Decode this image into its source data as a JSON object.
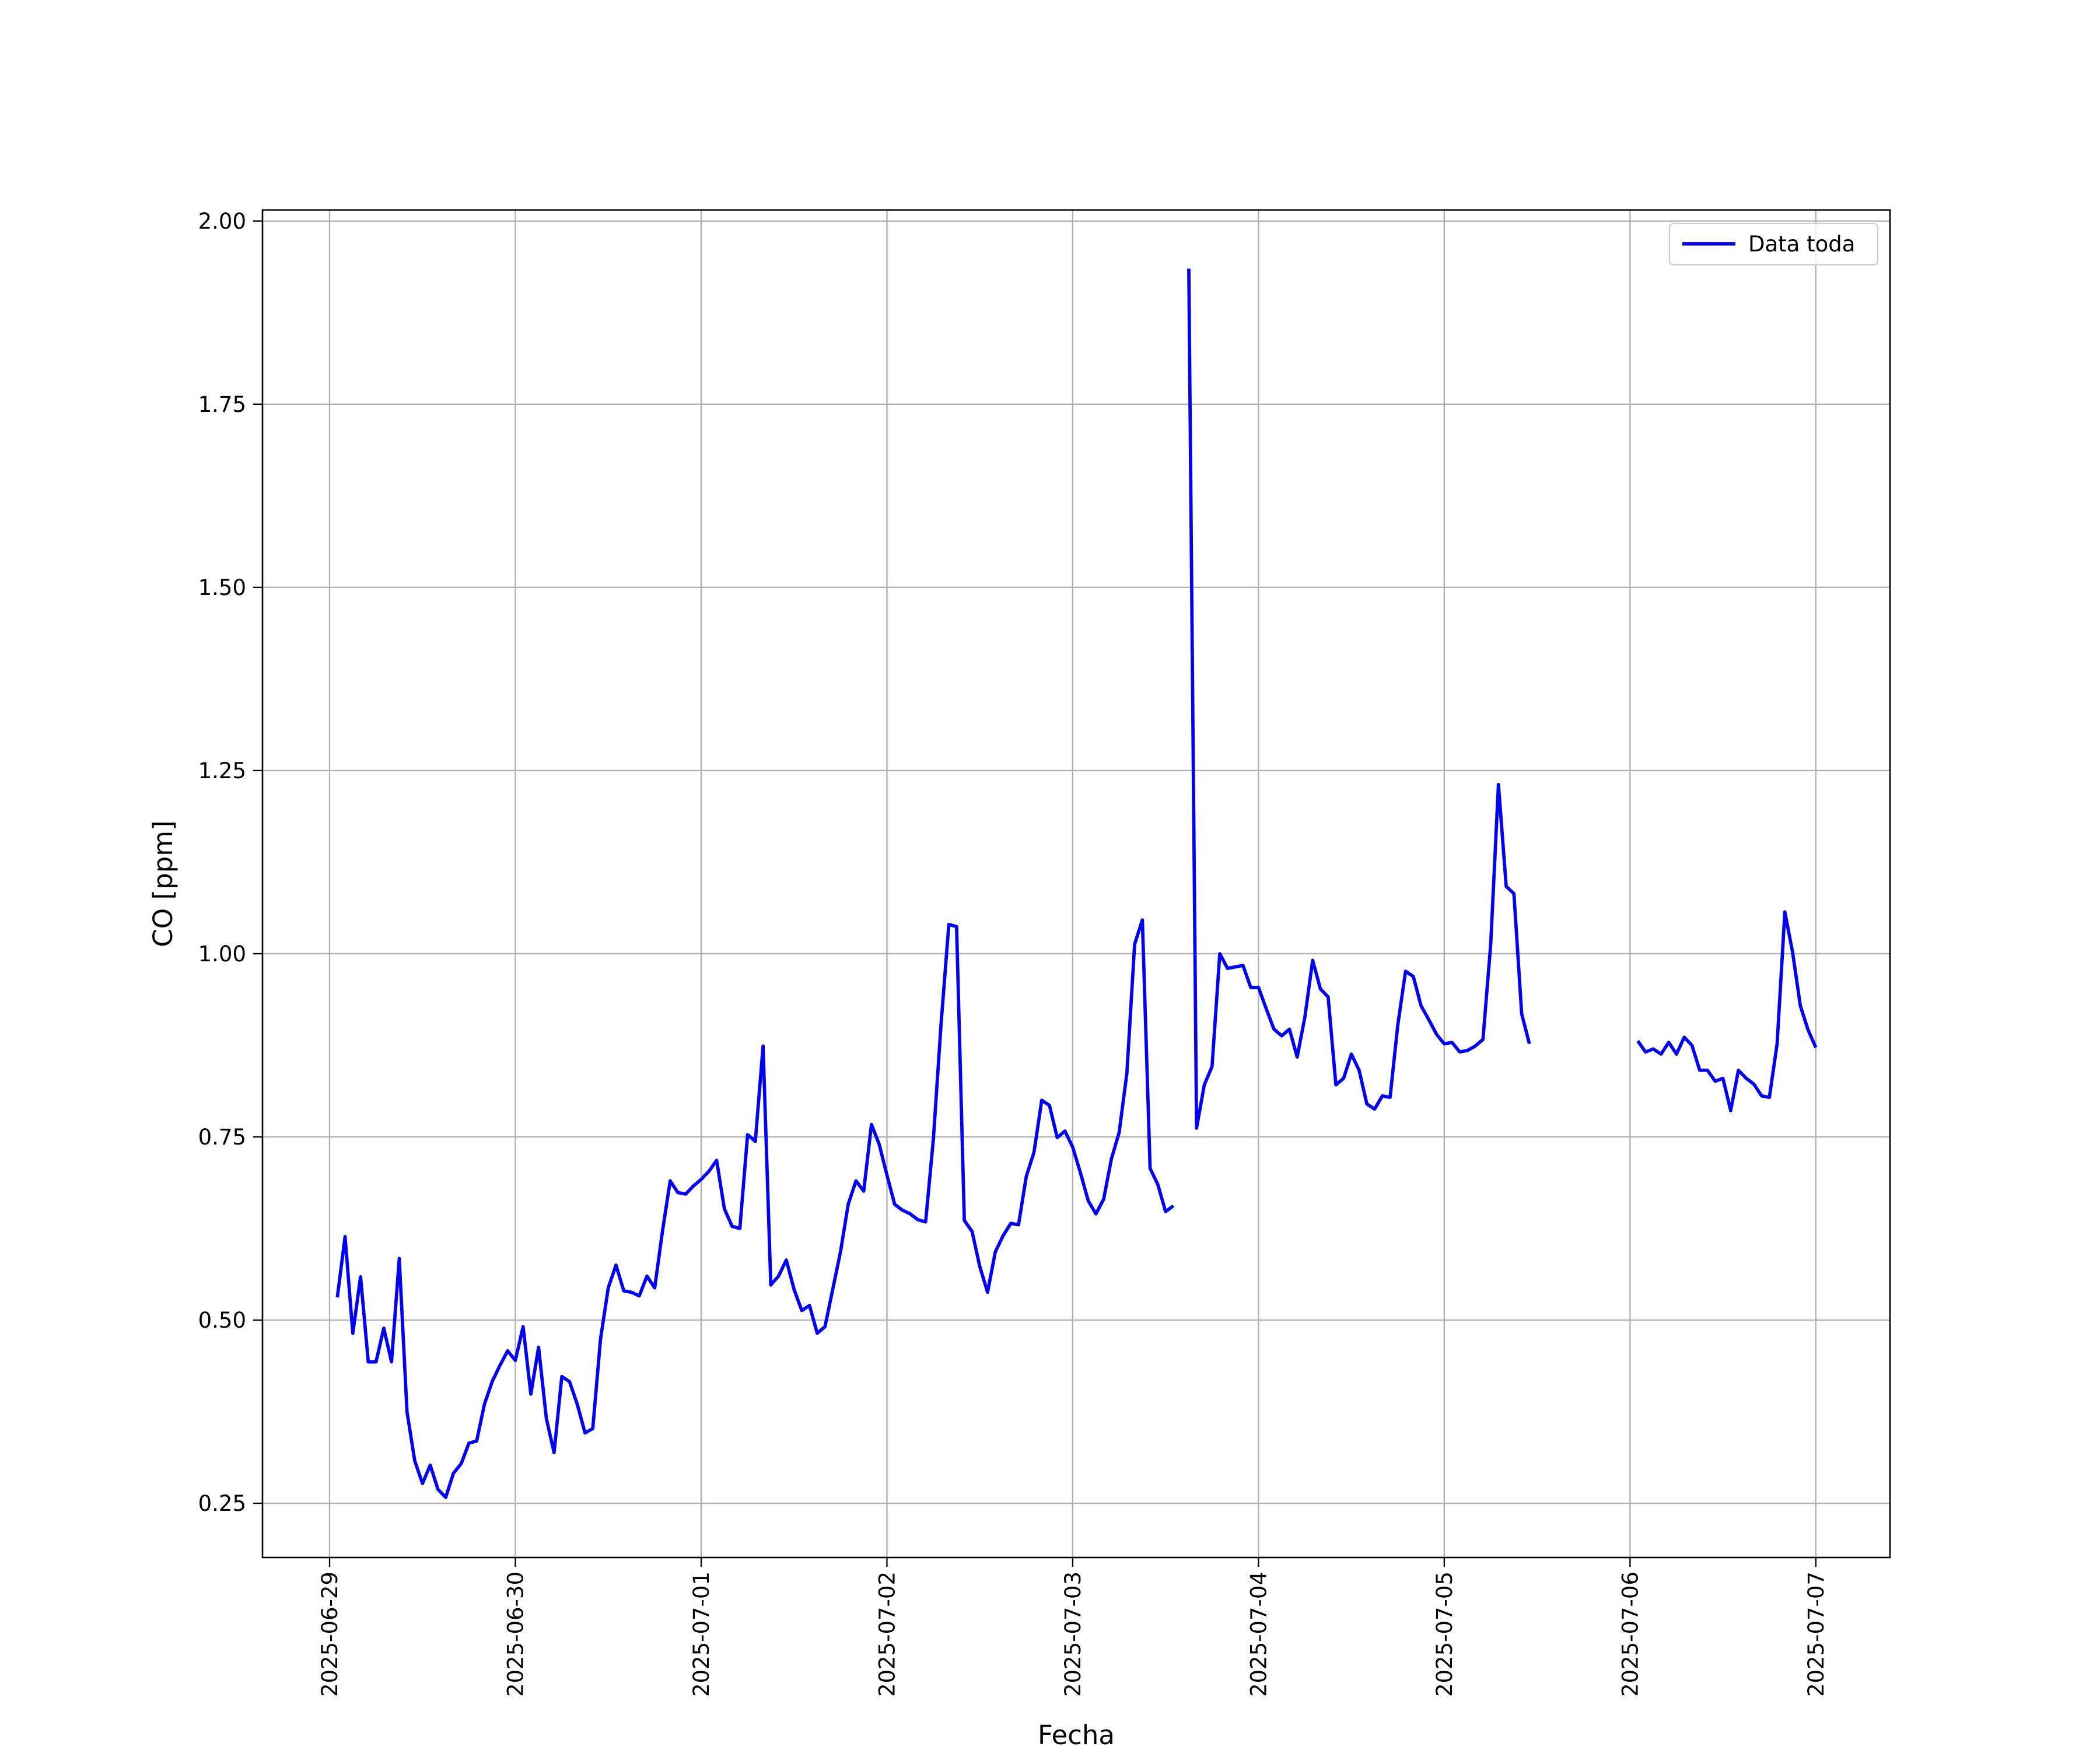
{
  "chart_data": {
    "type": "line",
    "title": "",
    "xlabel": "Fecha",
    "ylabel": "CO [ppm]",
    "xlim": [
      "2025-06-28 15:20",
      "2025-07-07 09:35"
    ],
    "ylim": [
      0.176,
      2.015
    ],
    "grid": true,
    "legend_position": "top-right",
    "x_ticks": [
      "2025-06-29",
      "2025-06-30",
      "2025-07-01",
      "2025-07-02",
      "2025-07-03",
      "2025-07-04",
      "2025-07-05",
      "2025-07-06",
      "2025-07-07"
    ],
    "y_ticks": [
      "0.25",
      "0.50",
      "0.75",
      "1.00",
      "1.25",
      "1.50",
      "1.75",
      "2.00"
    ],
    "series": [
      {
        "name": "Data toda",
        "color": "#0000ff",
        "points": [
          [
            "2025-06-29 01:00",
            0.531
          ],
          [
            "2025-06-29 02:00",
            0.614
          ],
          [
            "2025-06-29 03:00",
            0.482
          ],
          [
            "2025-06-29 04:00",
            0.559
          ],
          [
            "2025-06-29 05:00",
            0.443
          ],
          [
            "2025-06-29 06:00",
            0.443
          ],
          [
            "2025-06-29 07:00",
            0.489
          ],
          [
            "2025-06-29 08:00",
            0.443
          ],
          [
            "2025-06-29 09:00",
            0.584
          ],
          [
            "2025-06-29 10:00",
            0.375
          ],
          [
            "2025-06-29 11:00",
            0.308
          ],
          [
            "2025-06-29 12:00",
            0.277
          ],
          [
            "2025-06-29 13:00",
            0.302
          ],
          [
            "2025-06-29 14:00",
            0.269
          ],
          [
            "2025-06-29 15:00",
            0.258
          ],
          [
            "2025-06-29 16:00",
            0.291
          ],
          [
            "2025-06-29 17:00",
            0.304
          ],
          [
            "2025-06-29 18:00",
            0.332
          ],
          [
            "2025-06-29 19:00",
            0.335
          ],
          [
            "2025-06-29 20:00",
            0.385
          ],
          [
            "2025-06-29 21:00",
            0.416
          ],
          [
            "2025-06-29 22:00",
            0.438
          ],
          [
            "2025-06-29 23:00",
            0.458
          ],
          [
            "2025-06-30 00:00",
            0.445
          ],
          [
            "2025-06-30 01:00",
            0.491
          ],
          [
            "2025-06-30 02:00",
            0.399
          ],
          [
            "2025-06-30 03:00",
            0.463
          ],
          [
            "2025-06-30 04:00",
            0.366
          ],
          [
            "2025-06-30 05:00",
            0.319
          ],
          [
            "2025-06-30 06:00",
            0.423
          ],
          [
            "2025-06-30 07:00",
            0.416
          ],
          [
            "2025-06-30 08:00",
            0.385
          ],
          [
            "2025-06-30 09:00",
            0.346
          ],
          [
            "2025-06-30 10:00",
            0.352
          ],
          [
            "2025-06-30 11:00",
            0.474
          ],
          [
            "2025-06-30 12:00",
            0.544
          ],
          [
            "2025-06-30 13:00",
            0.575
          ],
          [
            "2025-06-30 14:00",
            0.54
          ],
          [
            "2025-06-30 15:00",
            0.538
          ],
          [
            "2025-06-30 16:00",
            0.533
          ],
          [
            "2025-06-30 17:00",
            0.56
          ],
          [
            "2025-06-30 18:00",
            0.544
          ],
          [
            "2025-06-30 19:00",
            0.621
          ],
          [
            "2025-06-30 20:00",
            0.69
          ],
          [
            "2025-06-30 21:00",
            0.674
          ],
          [
            "2025-06-30 22:00",
            0.672
          ],
          [
            "2025-06-30 23:00",
            0.683
          ],
          [
            "2025-07-01 00:00",
            0.692
          ],
          [
            "2025-07-01 01:00",
            0.703
          ],
          [
            "2025-07-01 02:00",
            0.718
          ],
          [
            "2025-07-01 03:00",
            0.652
          ],
          [
            "2025-07-01 04:00",
            0.628
          ],
          [
            "2025-07-01 05:00",
            0.625
          ],
          [
            "2025-07-01 06:00",
            0.753
          ],
          [
            "2025-07-01 07:00",
            0.744
          ],
          [
            "2025-07-01 08:00",
            0.874
          ],
          [
            "2025-07-01 09:00",
            0.548
          ],
          [
            "2025-07-01 10:00",
            0.56
          ],
          [
            "2025-07-01 11:00",
            0.582
          ],
          [
            "2025-07-01 12:00",
            0.542
          ],
          [
            "2025-07-01 13:00",
            0.513
          ],
          [
            "2025-07-01 14:00",
            0.52
          ],
          [
            "2025-07-01 15:00",
            0.482
          ],
          [
            "2025-07-01 16:00",
            0.491
          ],
          [
            "2025-07-01 17:00",
            0.542
          ],
          [
            "2025-07-01 18:00",
            0.593
          ],
          [
            "2025-07-01 19:00",
            0.658
          ],
          [
            "2025-07-01 20:00",
            0.69
          ],
          [
            "2025-07-01 21:00",
            0.676
          ],
          [
            "2025-07-01 22:00",
            0.767
          ],
          [
            "2025-07-01 23:00",
            0.74
          ],
          [
            "2025-07-02 00:00",
            0.698
          ],
          [
            "2025-07-02 01:00",
            0.658
          ],
          [
            "2025-07-02 02:00",
            0.65
          ],
          [
            "2025-07-02 03:00",
            0.645
          ],
          [
            "2025-07-02 04:00",
            0.637
          ],
          [
            "2025-07-02 05:00",
            0.634
          ],
          [
            "2025-07-02 06:00",
            0.747
          ],
          [
            "2025-07-02 07:00",
            0.905
          ],
          [
            "2025-07-02 08:00",
            1.04
          ],
          [
            "2025-07-02 09:00",
            1.037
          ],
          [
            "2025-07-02 10:00",
            0.636
          ],
          [
            "2025-07-02 11:00",
            0.621
          ],
          [
            "2025-07-02 12:00",
            0.573
          ],
          [
            "2025-07-02 13:00",
            0.538
          ],
          [
            "2025-07-02 14:00",
            0.593
          ],
          [
            "2025-07-02 15:00",
            0.615
          ],
          [
            "2025-07-02 16:00",
            0.632
          ],
          [
            "2025-07-02 17:00",
            0.63
          ],
          [
            "2025-07-02 18:00",
            0.696
          ],
          [
            "2025-07-02 19:00",
            0.729
          ],
          [
            "2025-07-02 20:00",
            0.8
          ],
          [
            "2025-07-02 21:00",
            0.793
          ],
          [
            "2025-07-02 22:00",
            0.749
          ],
          [
            "2025-07-02 23:00",
            0.758
          ],
          [
            "2025-07-03 00:00",
            0.736
          ],
          [
            "2025-07-03 01:00",
            0.701
          ],
          [
            "2025-07-03 02:00",
            0.663
          ],
          [
            "2025-07-03 03:00",
            0.645
          ],
          [
            "2025-07-03 04:00",
            0.665
          ],
          [
            "2025-07-03 05:00",
            0.72
          ],
          [
            "2025-07-03 06:00",
            0.756
          ],
          [
            "2025-07-03 07:00",
            0.837
          ],
          [
            "2025-07-03 08:00",
            1.013
          ],
          [
            "2025-07-03 09:00",
            1.046
          ],
          [
            "2025-07-03 10:00",
            0.707
          ],
          [
            "2025-07-03 11:00",
            0.685
          ],
          [
            "2025-07-03 12:00",
            0.648
          ],
          [
            "2025-07-03 13:00",
            0.656
          ],
          [
            "2025-07-03 15:00",
            1.935
          ],
          [
            "2025-07-03 16:00",
            0.762
          ],
          [
            "2025-07-03 17:00",
            0.821
          ],
          [
            "2025-07-03 18:00",
            0.846
          ],
          [
            "2025-07-03 19:00",
            1.0
          ],
          [
            "2025-07-03 20:00",
            0.98
          ],
          [
            "2025-07-03 21:00",
            0.982
          ],
          [
            "2025-07-03 22:00",
            0.984
          ],
          [
            "2025-07-03 23:00",
            0.954
          ],
          [
            "2025-07-04 00:00",
            0.954
          ],
          [
            "2025-07-04 01:00",
            0.925
          ],
          [
            "2025-07-04 02:00",
            0.897
          ],
          [
            "2025-07-04 03:00",
            0.888
          ],
          [
            "2025-07-04 04:00",
            0.897
          ],
          [
            "2025-07-04 05:00",
            0.859
          ],
          [
            "2025-07-04 06:00",
            0.914
          ],
          [
            "2025-07-04 07:00",
            0.991
          ],
          [
            "2025-07-04 08:00",
            0.952
          ],
          [
            "2025-07-04 09:00",
            0.941
          ],
          [
            "2025-07-04 10:00",
            0.821
          ],
          [
            "2025-07-04 11:00",
            0.83
          ],
          [
            "2025-07-04 12:00",
            0.863
          ],
          [
            "2025-07-04 13:00",
            0.841
          ],
          [
            "2025-07-04 14:00",
            0.795
          ],
          [
            "2025-07-04 15:00",
            0.788
          ],
          [
            "2025-07-04 16:00",
            0.806
          ],
          [
            "2025-07-04 17:00",
            0.804
          ],
          [
            "2025-07-04 18:00",
            0.903
          ],
          [
            "2025-07-04 19:00",
            0.976
          ],
          [
            "2025-07-04 20:00",
            0.969
          ],
          [
            "2025-07-04 21:00",
            0.929
          ],
          [
            "2025-07-04 22:00",
            0.91
          ],
          [
            "2025-07-04 23:00",
            0.89
          ],
          [
            "2025-07-05 00:00",
            0.877
          ],
          [
            "2025-07-05 01:00",
            0.879
          ],
          [
            "2025-07-05 02:00",
            0.866
          ],
          [
            "2025-07-05 03:00",
            0.868
          ],
          [
            "2025-07-05 04:00",
            0.874
          ],
          [
            "2025-07-05 05:00",
            0.883
          ],
          [
            "2025-07-05 06:00",
            1.013
          ],
          [
            "2025-07-05 07:00",
            1.231
          ],
          [
            "2025-07-05 08:00",
            1.092
          ],
          [
            "2025-07-05 09:00",
            1.082
          ],
          [
            "2025-07-05 10:00",
            0.918
          ],
          [
            "2025-07-05 11:00",
            0.877
          ],
          [
            "2025-07-06 01:00",
            0.881
          ],
          [
            "2025-07-06 02:00",
            0.866
          ],
          [
            "2025-07-06 03:00",
            0.87
          ],
          [
            "2025-07-06 04:00",
            0.863
          ],
          [
            "2025-07-06 05:00",
            0.879
          ],
          [
            "2025-07-06 06:00",
            0.863
          ],
          [
            "2025-07-06 07:00",
            0.886
          ],
          [
            "2025-07-06 08:00",
            0.875
          ],
          [
            "2025-07-06 09:00",
            0.841
          ],
          [
            "2025-07-06 10:00",
            0.841
          ],
          [
            "2025-07-06 11:00",
            0.826
          ],
          [
            "2025-07-06 12:00",
            0.83
          ],
          [
            "2025-07-06 13:00",
            0.786
          ],
          [
            "2025-07-06 14:00",
            0.841
          ],
          [
            "2025-07-06 15:00",
            0.83
          ],
          [
            "2025-07-06 16:00",
            0.822
          ],
          [
            "2025-07-06 17:00",
            0.806
          ],
          [
            "2025-07-06 18:00",
            0.804
          ],
          [
            "2025-07-06 19:00",
            0.877
          ],
          [
            "2025-07-06 20:00",
            1.057
          ],
          [
            "2025-07-06 21:00",
            1.002
          ],
          [
            "2025-07-06 22:00",
            0.929
          ],
          [
            "2025-07-06 23:00",
            0.896
          ],
          [
            "2025-07-07 00:00",
            0.872
          ]
        ]
      }
    ]
  }
}
